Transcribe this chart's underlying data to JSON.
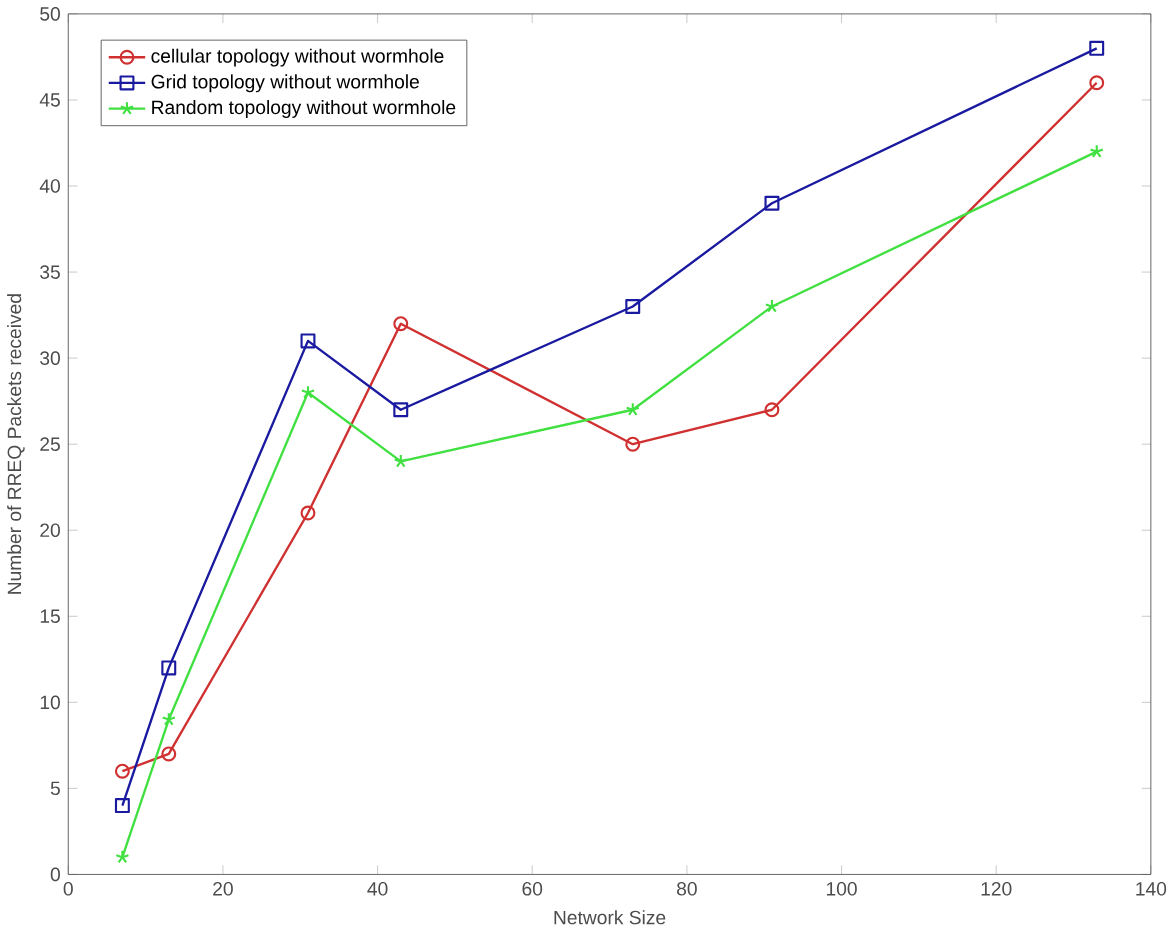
{
  "chart_data": {
    "type": "line",
    "xlabel": "Network Size",
    "ylabel": "Number of RREQ Packets received",
    "x": [
      7,
      13,
      31,
      43,
      73,
      91,
      133
    ],
    "series": [
      {
        "name": "cellular topology without wormhole",
        "color": "#d03030",
        "marker": "circle",
        "values": [
          6,
          7,
          21,
          32,
          25,
          27,
          46
        ]
      },
      {
        "name": "Grid topology without wormhole",
        "color": "#1a1aa0",
        "marker": "square",
        "values": [
          4,
          12,
          31,
          27,
          33,
          39,
          48
        ]
      },
      {
        "name": "Random topology without wormhole",
        "color": "#40e040",
        "marker": "cross",
        "values": [
          1,
          9,
          28,
          24,
          27,
          33,
          42
        ]
      }
    ],
    "xlim": [
      0,
      140
    ],
    "ylim": [
      0,
      50
    ],
    "xticks": [
      0,
      20,
      40,
      60,
      80,
      100,
      120,
      140
    ],
    "yticks": [
      0,
      5,
      10,
      15,
      20,
      25,
      30,
      35,
      40,
      45,
      50
    ],
    "legend": "top left",
    "grid": false,
    "line_style": "solid"
  }
}
